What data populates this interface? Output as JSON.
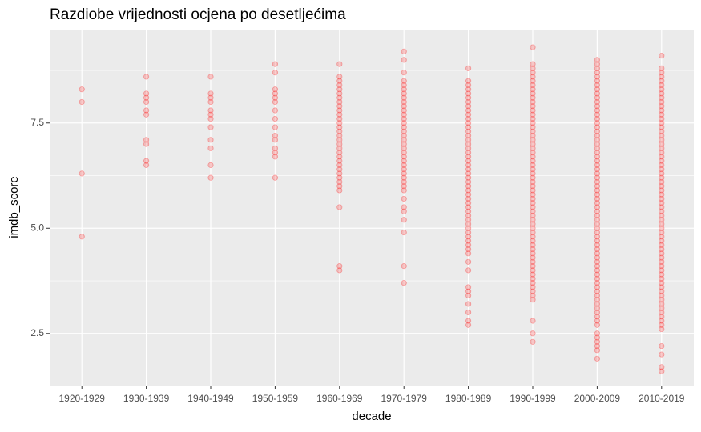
{
  "chart_data": {
    "type": "strip",
    "title": "Razdiobe vrijednosti ocjena po desetljećima",
    "x_label": "decade",
    "y_label": "imdb_score",
    "color": "#ff0000",
    "ylim": [
      1.26,
      9.72
    ],
    "yticks": [
      2.5,
      {
        "value": 5,
        "label": "5.0"
      },
      7.5
    ],
    "y_minor_grid": [
      3.75,
      6.25,
      8.75
    ],
    "grid": true,
    "categories": [
      "1920-1929",
      "1930-1939",
      "1940-1949",
      "1950-1959",
      "1960-1969",
      "1970-1979",
      "1980-1989",
      "1990-1999",
      "2000-2009",
      "2010-2019"
    ],
    "values": [
      [
        8.3,
        8.0,
        6.3,
        4.8
      ],
      [
        8.6,
        8.2,
        8.1,
        8.0,
        7.8,
        7.7,
        7.1,
        7.0,
        6.6,
        6.5
      ],
      [
        8.6,
        8.2,
        8.1,
        8.0,
        7.8,
        7.7,
        7.6,
        7.4,
        7.1,
        6.9,
        6.5,
        6.2
      ],
      [
        8.9,
        8.7,
        8.3,
        8.2,
        8.1,
        8.0,
        7.8,
        7.6,
        7.4,
        7.2,
        7.1,
        6.9,
        6.8,
        6.7,
        6.2
      ],
      [
        8.9,
        8.6,
        8.5,
        8.4,
        8.3,
        8.2,
        8.1,
        8.0,
        7.9,
        7.8,
        7.7,
        7.6,
        7.5,
        7.4,
        7.3,
        7.2,
        7.1,
        7.0,
        6.9,
        6.8,
        6.7,
        6.6,
        6.5,
        6.4,
        6.3,
        6.2,
        6.1,
        6.0,
        5.9,
        5.5,
        4.1,
        4.0
      ],
      [
        9.2,
        9.0,
        8.7,
        8.5,
        8.4,
        8.3,
        8.2,
        8.1,
        8.0,
        7.9,
        7.8,
        7.7,
        7.6,
        7.5,
        7.4,
        7.3,
        7.2,
        7.1,
        7.0,
        6.9,
        6.8,
        6.7,
        6.6,
        6.5,
        6.4,
        6.3,
        6.2,
        6.1,
        6.0,
        5.9,
        5.7,
        5.5,
        5.4,
        5.2,
        4.9,
        4.1,
        3.7
      ],
      [
        8.8,
        8.5,
        8.4,
        8.3,
        8.2,
        8.1,
        8.0,
        7.9,
        7.8,
        7.7,
        7.6,
        7.5,
        7.4,
        7.3,
        7.2,
        7.1,
        7.0,
        6.9,
        6.8,
        6.7,
        6.6,
        6.5,
        6.4,
        6.3,
        6.2,
        6.1,
        6.0,
        5.9,
        5.8,
        5.7,
        5.6,
        5.5,
        5.4,
        5.3,
        5.2,
        5.1,
        5.0,
        4.9,
        4.8,
        4.7,
        4.6,
        4.5,
        4.4,
        4.2,
        4.0,
        3.6,
        3.5,
        3.4,
        3.2,
        3.0,
        2.8,
        2.7
      ],
      [
        9.3,
        8.9,
        8.8,
        8.7,
        8.6,
        8.5,
        8.4,
        8.3,
        8.2,
        8.1,
        8.0,
        7.9,
        7.8,
        7.7,
        7.6,
        7.5,
        7.4,
        7.3,
        7.2,
        7.1,
        7.0,
        6.9,
        6.8,
        6.7,
        6.6,
        6.5,
        6.4,
        6.3,
        6.2,
        6.1,
        6.0,
        5.9,
        5.8,
        5.7,
        5.6,
        5.5,
        5.4,
        5.3,
        5.2,
        5.1,
        5.0,
        4.9,
        4.8,
        4.7,
        4.6,
        4.5,
        4.4,
        4.3,
        4.2,
        4.1,
        4.0,
        3.9,
        3.8,
        3.7,
        3.6,
        3.5,
        3.4,
        3.3,
        2.8,
        2.5,
        2.3
      ],
      [
        9.0,
        8.9,
        8.8,
        8.7,
        8.6,
        8.5,
        8.4,
        8.3,
        8.2,
        8.1,
        8.0,
        7.9,
        7.8,
        7.7,
        7.6,
        7.5,
        7.4,
        7.3,
        7.2,
        7.1,
        7.0,
        6.9,
        6.8,
        6.7,
        6.6,
        6.5,
        6.4,
        6.3,
        6.2,
        6.1,
        6.0,
        5.9,
        5.8,
        5.7,
        5.6,
        5.5,
        5.4,
        5.3,
        5.2,
        5.1,
        5.0,
        4.9,
        4.8,
        4.7,
        4.6,
        4.5,
        4.4,
        4.3,
        4.2,
        4.1,
        4.0,
        3.9,
        3.8,
        3.7,
        3.6,
        3.5,
        3.4,
        3.3,
        3.2,
        3.1,
        3.0,
        2.9,
        2.8,
        2.7,
        2.5,
        2.4,
        2.3,
        2.2,
        2.1,
        1.9
      ],
      [
        9.1,
        8.8,
        8.7,
        8.6,
        8.5,
        8.4,
        8.3,
        8.2,
        8.1,
        8.0,
        7.9,
        7.8,
        7.7,
        7.6,
        7.5,
        7.4,
        7.3,
        7.2,
        7.1,
        7.0,
        6.9,
        6.8,
        6.7,
        6.6,
        6.5,
        6.4,
        6.3,
        6.2,
        6.1,
        6.0,
        5.9,
        5.8,
        5.7,
        5.6,
        5.5,
        5.4,
        5.3,
        5.2,
        5.1,
        5.0,
        4.9,
        4.8,
        4.7,
        4.6,
        4.5,
        4.4,
        4.3,
        4.2,
        4.1,
        4.0,
        3.9,
        3.8,
        3.7,
        3.6,
        3.5,
        3.4,
        3.3,
        3.2,
        3.1,
        3.0,
        2.9,
        2.8,
        2.7,
        2.6,
        2.2,
        2.0,
        1.7,
        1.6
      ]
    ]
  }
}
